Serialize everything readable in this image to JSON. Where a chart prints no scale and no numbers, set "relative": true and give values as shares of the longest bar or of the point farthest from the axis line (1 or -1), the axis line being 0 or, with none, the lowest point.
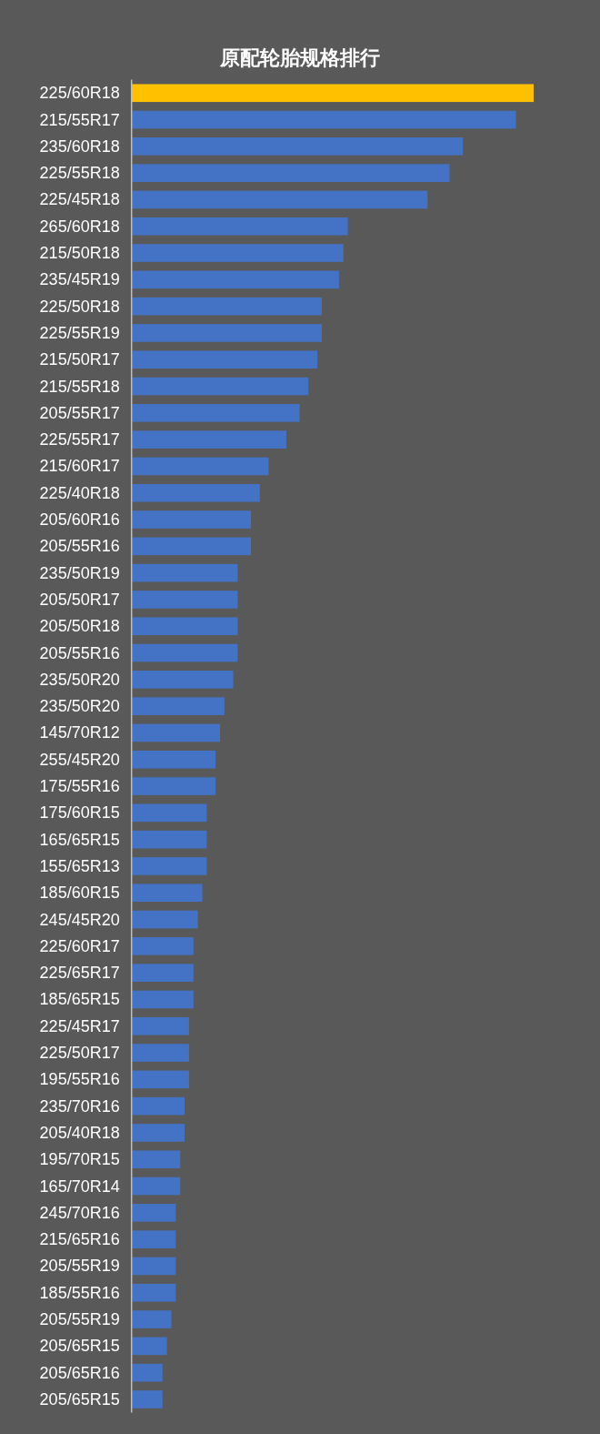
{
  "chart_data": {
    "type": "bar",
    "orientation": "horizontal",
    "relative": true,
    "title": "原配轮胎规格排行",
    "categories": [
      "225/60R18",
      "215/55R17",
      "235/60R18",
      "225/55R18",
      "225/45R18",
      "265/60R18",
      "215/50R18",
      "235/45R19",
      "225/50R18",
      "225/55R19",
      "215/50R17",
      "215/55R18",
      "205/55R17",
      "225/55R17",
      "215/60R17",
      "225/40R18",
      "205/60R16",
      "205/55R16",
      "235/50R19",
      "205/50R17",
      "205/50R18",
      "205/55R16",
      "235/50R20",
      "235/50R20",
      "145/70R12",
      "255/45R20",
      "175/55R16",
      "175/60R15",
      "165/65R15",
      "155/65R13",
      "185/60R15",
      "245/45R20",
      "225/60R17",
      "225/65R17",
      "185/65R15",
      "225/45R17",
      "225/50R17",
      "195/55R16",
      "235/70R16",
      "205/40R18",
      "195/70R15",
      "165/70R14",
      "245/70R16",
      "215/65R16",
      "205/55R19",
      "185/55R16",
      "205/55R19",
      "205/65R15",
      "205/65R16",
      "205/65R15"
    ],
    "values": [
      1,
      0.956,
      0.824,
      0.791,
      0.736,
      0.538,
      0.527,
      0.516,
      0.473,
      0.473,
      0.462,
      0.44,
      0.418,
      0.385,
      0.341,
      0.319,
      0.297,
      0.297,
      0.264,
      0.264,
      0.264,
      0.264,
      0.253,
      0.231,
      0.22,
      0.209,
      0.209,
      0.187,
      0.187,
      0.187,
      0.176,
      0.165,
      0.154,
      0.154,
      0.154,
      0.143,
      0.143,
      0.143,
      0.132,
      0.132,
      0.121,
      0.121,
      0.11,
      0.11,
      0.11,
      0.11,
      0.099,
      0.088,
      0.077,
      0.077
    ],
    "colors": [
      "#ffc000",
      "#4472c4",
      "#4472c4",
      "#4472c4",
      "#4472c4",
      "#4472c4",
      "#4472c4",
      "#4472c4",
      "#4472c4",
      "#4472c4",
      "#4472c4",
      "#4472c4",
      "#4472c4",
      "#4472c4",
      "#4472c4",
      "#4472c4",
      "#4472c4",
      "#4472c4",
      "#4472c4",
      "#4472c4",
      "#4472c4",
      "#4472c4",
      "#4472c4",
      "#4472c4",
      "#4472c4",
      "#4472c4",
      "#4472c4",
      "#4472c4",
      "#4472c4",
      "#4472c4",
      "#4472c4",
      "#4472c4",
      "#4472c4",
      "#4472c4",
      "#4472c4",
      "#4472c4",
      "#4472c4",
      "#4472c4",
      "#4472c4",
      "#4472c4",
      "#4472c4",
      "#4472c4",
      "#4472c4",
      "#4472c4",
      "#4472c4",
      "#4472c4",
      "#4472c4",
      "#4472c4",
      "#4472c4",
      "#4472c4"
    ]
  }
}
